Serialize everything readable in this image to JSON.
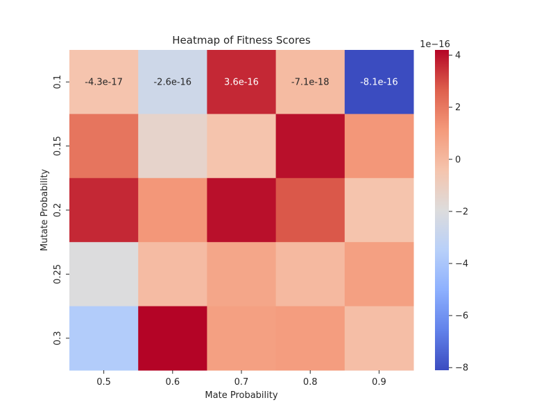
{
  "chart_data": {
    "type": "heatmap",
    "title": "Heatmap of Fitness Scores",
    "xlabel": "Mate Probability",
    "ylabel": "Mutate Probability",
    "x_categories": [
      "0.5",
      "0.6",
      "0.7",
      "0.8",
      "0.9"
    ],
    "y_categories": [
      "0.1",
      "0.15",
      "0.2",
      "0.25",
      "0.3"
    ],
    "values": [
      [
        -4.3e-17,
        -2.6e-16,
        3.6e-16,
        -7.1e-18,
        -8.1e-16
      ],
      [
        2.1e-16,
        -1.4e-16,
        -4e-17,
        4e-16,
        1.2e-16
      ],
      [
        3.6e-16,
        1.2e-16,
        4e-16,
        2.8e-16,
        -4e-17
      ],
      [
        -2e-16,
        -1e-17,
        7e-17,
        0.0,
        9e-17
      ],
      [
        -3.7e-16,
        4.2e-16,
        9e-17,
        1e-16,
        -2e-17
      ]
    ],
    "annotations": [
      [
        "-4.3e-17",
        "-2.6e-16",
        "3.6e-16",
        "-7.1e-18",
        "-8.1e-16"
      ],
      [
        "",
        "",
        "",
        "",
        ""
      ],
      [
        "",
        "",
        "",
        "",
        ""
      ],
      [
        "",
        "",
        "",
        "",
        ""
      ],
      [
        "",
        "",
        "",
        "",
        ""
      ]
    ],
    "colormap": "coolwarm",
    "vmin": -8.1e-16,
    "vmax": 4.2e-16,
    "colorbar": {
      "multiplier": "1e−16",
      "ticks": [
        -8,
        -6,
        -4,
        -2,
        0,
        2,
        4
      ],
      "tick_labels": [
        "−8",
        "−6",
        "−4",
        "−2",
        "0",
        "2",
        "4"
      ],
      "scale": 1e-16
    }
  }
}
